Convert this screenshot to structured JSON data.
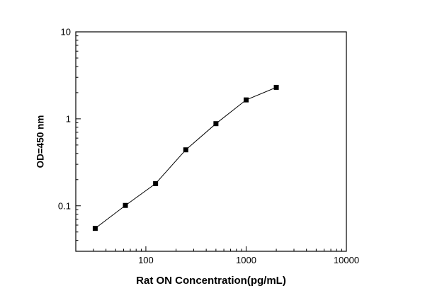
{
  "chart_data": {
    "type": "line",
    "title": "",
    "xlabel": "Rat ON Concentration(pg/mL)",
    "ylabel": "OD=450 nm",
    "x": [
      31.25,
      62.5,
      125,
      250,
      500,
      1000,
      2000
    ],
    "y": [
      0.055,
      0.101,
      0.18,
      0.44,
      0.88,
      1.65,
      2.3
    ],
    "xscale": "log",
    "yscale": "log",
    "xlim": [
      20,
      10000
    ],
    "ylim": [
      0.03,
      10
    ],
    "x_ticks": [
      100,
      1000,
      10000
    ],
    "x_tick_labels": [
      "100",
      "1000",
      "10000"
    ],
    "y_ticks": [
      0.1,
      1,
      10
    ],
    "y_tick_labels": [
      "0.1",
      "1",
      "10"
    ],
    "grid": "off",
    "legend": "none",
    "marker": "filled-square",
    "marker_color": "#000000",
    "line_color": "#000000",
    "axis_color": "#000000",
    "background_color": "#ffffff"
  }
}
